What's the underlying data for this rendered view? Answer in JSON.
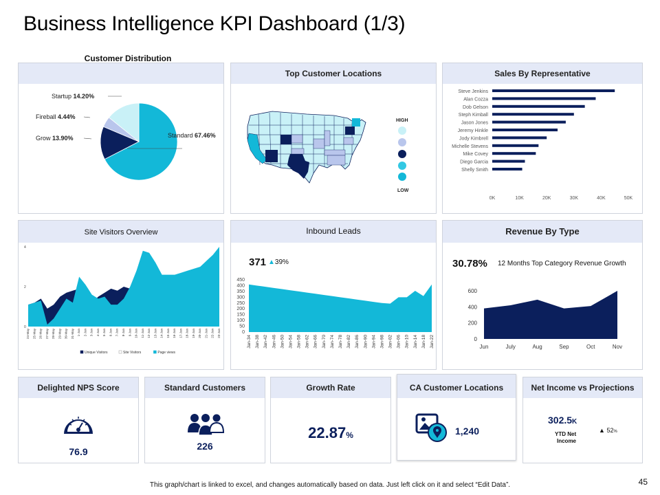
{
  "page": {
    "title": "Business Intelligence KPI Dashboard (1/3)",
    "footer": "This graph/chart is linked to excel, and changes automatically based on data. Just left click on it and select “Edit Data”.",
    "page_number": "45"
  },
  "colors": {
    "navy": "#0b1f5c",
    "cyan": "#13b8d8",
    "light_cyan": "#c9f1f7",
    "header_bg": "#e4e9f7"
  },
  "panels": {
    "customer_distribution": {
      "title": "Customer Distribution"
    },
    "top_locations": {
      "title": "Top Customer Locations",
      "legend_high": "HIGH",
      "legend_low": "LOW"
    },
    "sales_rep": {
      "title": "Sales By Representative"
    },
    "site_visitors": {
      "title": "Site Visitors Overview"
    },
    "inbound_leads": {
      "title": "Inbound Leads",
      "value": "371",
      "change": "39%"
    },
    "revenue_type": {
      "title": "Revenue By Type",
      "value": "30.78%",
      "subtitle": "12 Months Top Category Revenue Growth"
    },
    "nps": {
      "title": "Delighted NPS Score",
      "value": "76.9"
    },
    "standard_customers": {
      "title": "Standard Customers",
      "value": "226"
    },
    "growth_rate": {
      "title": "Growth Rate",
      "value": "22.87",
      "unit": "%"
    },
    "ca_locations": {
      "title": "CA Customer Locations",
      "value": "1,240"
    },
    "net_income": {
      "title": "Net Income vs Projections",
      "value": "302.5",
      "unit": "K",
      "label_line1": "YTD Net",
      "label_line2": "Income",
      "change": "52",
      "change_unit": "%"
    }
  },
  "chart_data": [
    {
      "id": "customer_distribution",
      "type": "pie",
      "title": "Customer Distribution",
      "slices": [
        {
          "label": "Standard",
          "value_text": "67.46%",
          "value": 67.46,
          "color": "#13b8d8"
        },
        {
          "label": "Grow",
          "value_text": "13.90%",
          "value": 13.9,
          "color": "#0b1f5c"
        },
        {
          "label": "Fireball",
          "value_text": "4.44%",
          "value": 4.44,
          "color": "#b9c6ec"
        },
        {
          "label": "Startup",
          "value_text": "14.20%",
          "value": 14.2,
          "color": "#c9f1f7"
        }
      ]
    },
    {
      "id": "sales_rep",
      "type": "bar",
      "title": "Sales By Representative",
      "categories": [
        "Steve Jenkins",
        "Alan Cozza",
        "Dob Gelson",
        "Steph Kimball",
        "Jason Jones",
        "Jeremy Hinkle",
        "Jody Kimbrell",
        "Michelle Stevens",
        "Mike Covey",
        "Diego Garcia",
        "Shelly Smith"
      ],
      "values": [
        45000,
        38000,
        34000,
        30000,
        27000,
        24000,
        20000,
        17000,
        16000,
        12000,
        11000
      ],
      "xticks": [
        "0K",
        "10K",
        "20K",
        "30K",
        "40K",
        "50K"
      ],
      "xlim": [
        0,
        50000
      ]
    },
    {
      "id": "site_visitors",
      "type": "area",
      "title": "Site Visitors Overview",
      "categories": [
        "24-May",
        "25-May",
        "26-May",
        "27-May",
        "28-May",
        "29-May",
        "30-May",
        "31-May",
        "1-Jun",
        "2-Jun",
        "3-Jun",
        "4-Jun",
        "5-Jun",
        "6-Jun",
        "7-Jun",
        "8-Jun",
        "9-Jun",
        "10-Jun",
        "11-Jun",
        "12-Jun",
        "13-Jun",
        "14-Jun",
        "15-Jun",
        "16-Jun",
        "17-Jun",
        "18-Jun",
        "19-Jun",
        "20-Jun",
        "21-Jun",
        "22-Jun",
        "23-Jun"
      ],
      "yticks": [
        "0",
        "2",
        "4"
      ],
      "ylim": [
        0,
        4
      ],
      "series": [
        {
          "name": "Unique Visitors",
          "color": "#0b1f5c",
          "values": [
            1.1,
            1.2,
            1.4,
            0.9,
            1.1,
            1.5,
            1.7,
            1.8,
            1.9,
            1.6,
            1.2,
            1.5,
            1.7,
            1.9,
            1.8,
            2.0,
            1.9,
            2.3,
            2.6,
            2.5,
            2.4,
            2.0,
            2.1,
            2.1,
            2.2,
            2.3,
            2.4,
            2.6,
            2.8,
            2.9,
            3.1
          ]
        },
        {
          "name": "Site Visitors",
          "color": "#ffffff",
          "values": [
            0.8,
            0.9,
            1.0,
            0.5,
            0.7,
            0.9,
            1.0,
            1.1,
            1.2,
            1.1,
            1.0,
            1.0,
            1.1,
            1.2,
            1.2,
            1.3,
            1.4,
            1.5,
            1.6,
            1.6,
            1.5,
            1.5,
            1.5,
            1.6,
            1.6,
            1.7,
            1.7,
            1.8,
            1.8,
            1.9,
            2.0
          ]
        },
        {
          "name": "Page views",
          "color": "#13b8d8",
          "values": [
            1.1,
            1.2,
            1.3,
            0.1,
            0.4,
            0.9,
            1.4,
            1.2,
            2.5,
            2.1,
            1.6,
            1.4,
            1.5,
            1.1,
            1.1,
            1.4,
            2.0,
            2.8,
            3.8,
            3.7,
            3.2,
            2.6,
            2.6,
            2.6,
            2.7,
            2.8,
            2.9,
            3.0,
            3.3,
            3.6,
            4.0
          ]
        }
      ]
    },
    {
      "id": "inbound_leads",
      "type": "area",
      "title": "Inbound Leads",
      "categories": [
        "Jan-34",
        "Jan-38",
        "Jan-42",
        "Jan-46",
        "Jan-50",
        "Jan-54",
        "Jan-58",
        "Jan-62",
        "Jan-66",
        "Jan-70",
        "Jan-74",
        "Jan-78",
        "Jan-82",
        "Jan-86",
        "Jan-90",
        "Jan-94",
        "Jan-98",
        "Jan-02",
        "Jan-06",
        "Jan-10",
        "Jan-14",
        "Jan-18",
        "Jan-22"
      ],
      "values": [
        410,
        400,
        390,
        380,
        370,
        360,
        350,
        340,
        330,
        320,
        310,
        300,
        290,
        280,
        270,
        260,
        250,
        245,
        300,
        300,
        355,
        310,
        410
      ],
      "yticks": [
        "0",
        "50",
        "100",
        "150",
        "200",
        "250",
        "300",
        "350",
        "400",
        "450"
      ],
      "ylim": [
        0,
        450
      ]
    },
    {
      "id": "revenue_type",
      "type": "area",
      "title": "Revenue By Type",
      "categories": [
        "Jun",
        "July",
        "Aug",
        "Sep",
        "Oct",
        "Nov"
      ],
      "values": [
        380,
        420,
        490,
        380,
        410,
        600
      ],
      "yticks": [
        "0",
        "200",
        "400",
        "600"
      ],
      "ylim": [
        0,
        600
      ]
    }
  ]
}
